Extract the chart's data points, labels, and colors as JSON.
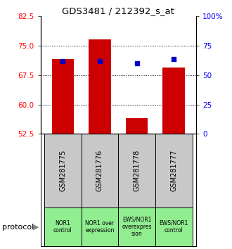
{
  "title": "GDS3481 / 212392_s_at",
  "samples": [
    "GSM281775",
    "GSM281776",
    "GSM281778",
    "GSM281777"
  ],
  "protocols": [
    "NOR1\ncontrol",
    "NOR1 over\nexpression",
    "EWS/NOR1\noverexpres\nsion",
    "EWS/NOR1\ncontrol"
  ],
  "bar_values": [
    71.5,
    76.5,
    56.5,
    69.5
  ],
  "dot_values": [
    71.0,
    71.0,
    70.5,
    71.5
  ],
  "bar_color": "#cc0000",
  "dot_color": "#0000cc",
  "ylim_left": [
    52.5,
    82.5
  ],
  "ylim_right": [
    0,
    100
  ],
  "yticks_left": [
    52.5,
    60.0,
    67.5,
    75.0,
    82.5
  ],
  "yticks_right": [
    0,
    25,
    50,
    75,
    100
  ],
  "ytick_labels_right": [
    "0",
    "25",
    "50",
    "75",
    "100%"
  ],
  "bar_bottom": 52.5,
  "protocol_colors": [
    "#90ee90",
    "#90ee90",
    "#90ee90",
    "#90ee90"
  ],
  "sample_bg_color": "#c8c8c8",
  "legend_count_color": "#cc0000",
  "legend_dot_color": "#0000cc",
  "gridlines": [
    60.0,
    67.5,
    75.0
  ]
}
